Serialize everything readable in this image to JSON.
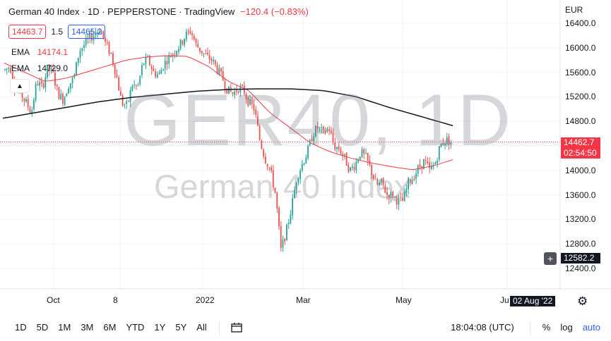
{
  "header": {
    "title": "German 40 Index · 1D · PEPPERSTONE · TradingView",
    "change": "−120.4 (−0.83%)",
    "bid": "14463.7",
    "spread": "1.5",
    "ask": "14465.2"
  },
  "indicators": [
    {
      "label": "EMA",
      "value": "14174.1",
      "color": "#f23645"
    },
    {
      "label": "EMA",
      "value": "14729.0",
      "color": "#131722"
    }
  ],
  "watermark": {
    "symbol": "GER40, 1D",
    "name": "German 40 Index"
  },
  "currency": "EUR",
  "price_tags": {
    "last_price": "14462.7",
    "countdown": "02:54:50",
    "crosshair_price": "12582.2",
    "crosshair_date": "02 Aug '22"
  },
  "toolbar": {
    "timeframes": [
      "1D",
      "5D",
      "1M",
      "3M",
      "6M",
      "YTD",
      "1Y",
      "5Y",
      "All"
    ],
    "clock": "18:04:08 (UTC)",
    "percent": "%",
    "log": "log",
    "auto": "auto"
  },
  "colors": {
    "up": "#26a69a",
    "down": "#ef5350",
    "ema_fast": "#f23645",
    "ema_slow": "#131722"
  },
  "chart_data": {
    "type": "candlestick",
    "y_ticks": [
      16400,
      16000,
      15600,
      15200,
      14800,
      14400,
      14000,
      13600,
      13200,
      12800,
      12400
    ],
    "y_tick_labels": [
      "16400.0",
      "16000.0",
      "15600.0",
      "15200.0",
      "14800.0",
      "14400.0",
      "14000.0",
      "13600.0",
      "13200.0",
      "12800.0",
      "12400.0"
    ],
    "ylim": [
      12160,
      16530
    ],
    "x_tick_labels": [
      "Oct",
      "8",
      "2022",
      "Mar",
      "May",
      "Ju"
    ],
    "price_path": [
      [
        15640,
        15700
      ],
      [
        15300,
        15250
      ],
      [
        15100,
        14950
      ],
      [
        15450,
        15350
      ],
      [
        15650,
        15600
      ],
      [
        15250,
        15150
      ],
      [
        15400,
        15500
      ],
      [
        15950,
        16050
      ],
      [
        16150,
        16250
      ],
      [
        16300,
        16050
      ],
      [
        15900,
        15550
      ],
      [
        15100,
        15050
      ],
      [
        15400,
        15350
      ],
      [
        15750,
        15800
      ],
      [
        15600,
        15550
      ],
      [
        15750,
        15850
      ],
      [
        15950,
        16050
      ],
      [
        16200,
        16280
      ],
      [
        16050,
        15950
      ],
      [
        15850,
        15800
      ],
      [
        15650,
        15500
      ],
      [
        15300,
        15250
      ],
      [
        15350,
        15300
      ],
      [
        15100,
        15000
      ],
      [
        14500,
        14200
      ],
      [
        14000,
        13600
      ],
      [
        12700,
        13000
      ],
      [
        13400,
        13900
      ],
      [
        14100,
        14300
      ],
      [
        14600,
        14700
      ],
      [
        14600,
        14700
      ],
      [
        14400,
        14350
      ],
      [
        14200,
        14000
      ],
      [
        14100,
        14300
      ],
      [
        14200,
        14000
      ],
      [
        13750,
        13800
      ],
      [
        13600,
        13600
      ],
      [
        13500,
        13500
      ],
      [
        13800,
        13900
      ],
      [
        14050,
        14150
      ],
      [
        14000,
        14100
      ],
      [
        14400,
        14500
      ]
    ],
    "ema_fast": [
      15750,
      15600,
      15450,
      15500,
      15600,
      15700,
      15800,
      15850,
      15870,
      15860,
      15700,
      15450,
      15300,
      14950,
      14700,
      14450,
      14300,
      14200,
      14120,
      14060,
      14010,
      14070,
      14174.1
    ],
    "ema_slow": [
      14850,
      14940,
      15030,
      15120,
      15190,
      15240,
      15290,
      15320,
      15330,
      15330,
      15300,
      15200,
      15030,
      14880,
      14729.0
    ],
    "last_price": 14462.7
  }
}
